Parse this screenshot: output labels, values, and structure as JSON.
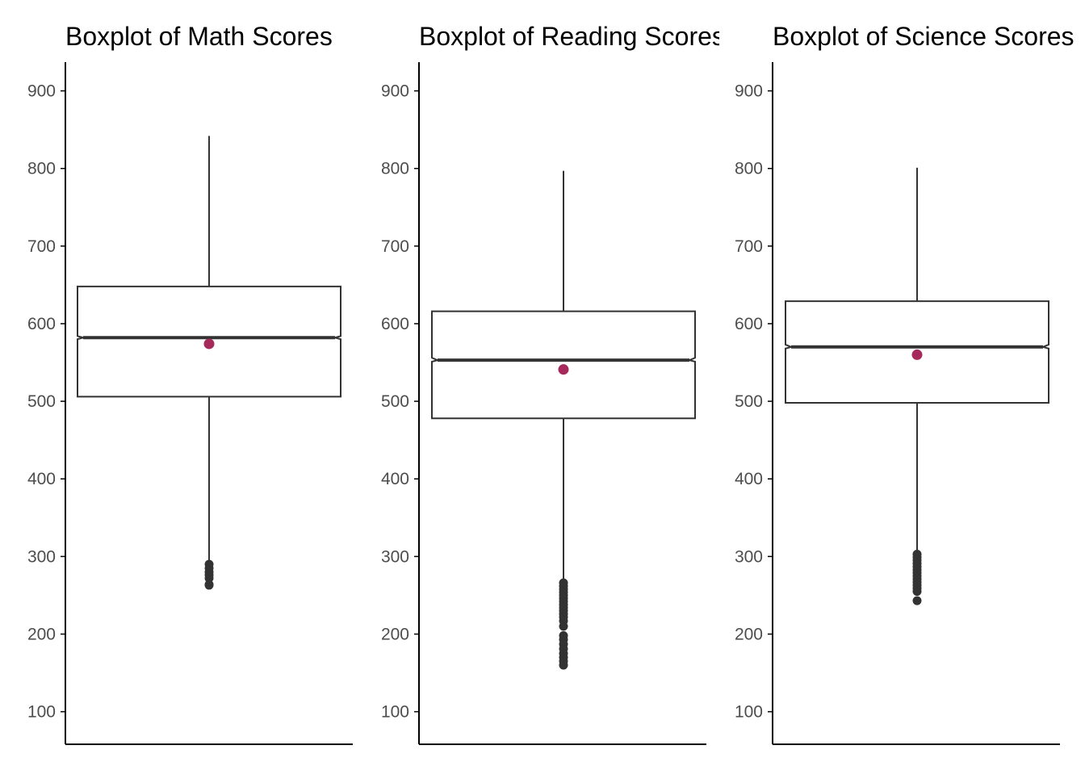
{
  "chart_data": [
    {
      "type": "boxplot",
      "title": "Boxplot of Math Scores",
      "ylim": [
        58,
        937
      ],
      "yticks": [
        100,
        200,
        300,
        400,
        500,
        600,
        700,
        800,
        900
      ],
      "box": {
        "q1": 506,
        "median": 582,
        "q3": 648,
        "whisker_low": 293,
        "whisker_high": 842,
        "notch_low": 580,
        "notch_high": 584,
        "mean": 574
      },
      "outliers": [
        290,
        285,
        280,
        276,
        272,
        264,
        263
      ],
      "grid": false,
      "legend": "none"
    },
    {
      "type": "boxplot",
      "title": "Boxplot of Reading Scores",
      "ylim": [
        58,
        937
      ],
      "yticks": [
        100,
        200,
        300,
        400,
        500,
        600,
        700,
        800,
        900
      ],
      "box": {
        "q1": 478,
        "median": 553,
        "q3": 616,
        "whisker_low": 268,
        "whisker_high": 797,
        "notch_low": 551,
        "notch_high": 556,
        "mean": 541
      },
      "outliers": [
        266,
        262,
        258,
        254,
        250,
        246,
        242,
        238,
        234,
        230,
        226,
        222,
        217,
        210,
        198,
        193,
        187,
        181,
        175,
        170,
        165,
        160
      ],
      "grid": false,
      "legend": "none"
    },
    {
      "type": "boxplot",
      "title": "Boxplot of Science Scores",
      "ylim": [
        58,
        937
      ],
      "yticks": [
        100,
        200,
        300,
        400,
        500,
        600,
        700,
        800,
        900
      ],
      "box": {
        "q1": 498,
        "median": 570,
        "q3": 629,
        "whisker_low": 305,
        "whisker_high": 801,
        "notch_low": 568,
        "notch_high": 573,
        "mean": 560
      },
      "outliers": [
        303,
        299,
        295,
        291,
        287,
        283,
        279,
        275,
        271,
        267,
        263,
        259,
        255,
        243
      ],
      "grid": false,
      "legend": "none"
    }
  ],
  "colors": {
    "box_stroke": "#333333",
    "outlier_fill": "#333333",
    "mean_point": "#A6295B",
    "axis": "#000000",
    "tick_label": "#4d4d4d",
    "background": "#ffffff"
  }
}
